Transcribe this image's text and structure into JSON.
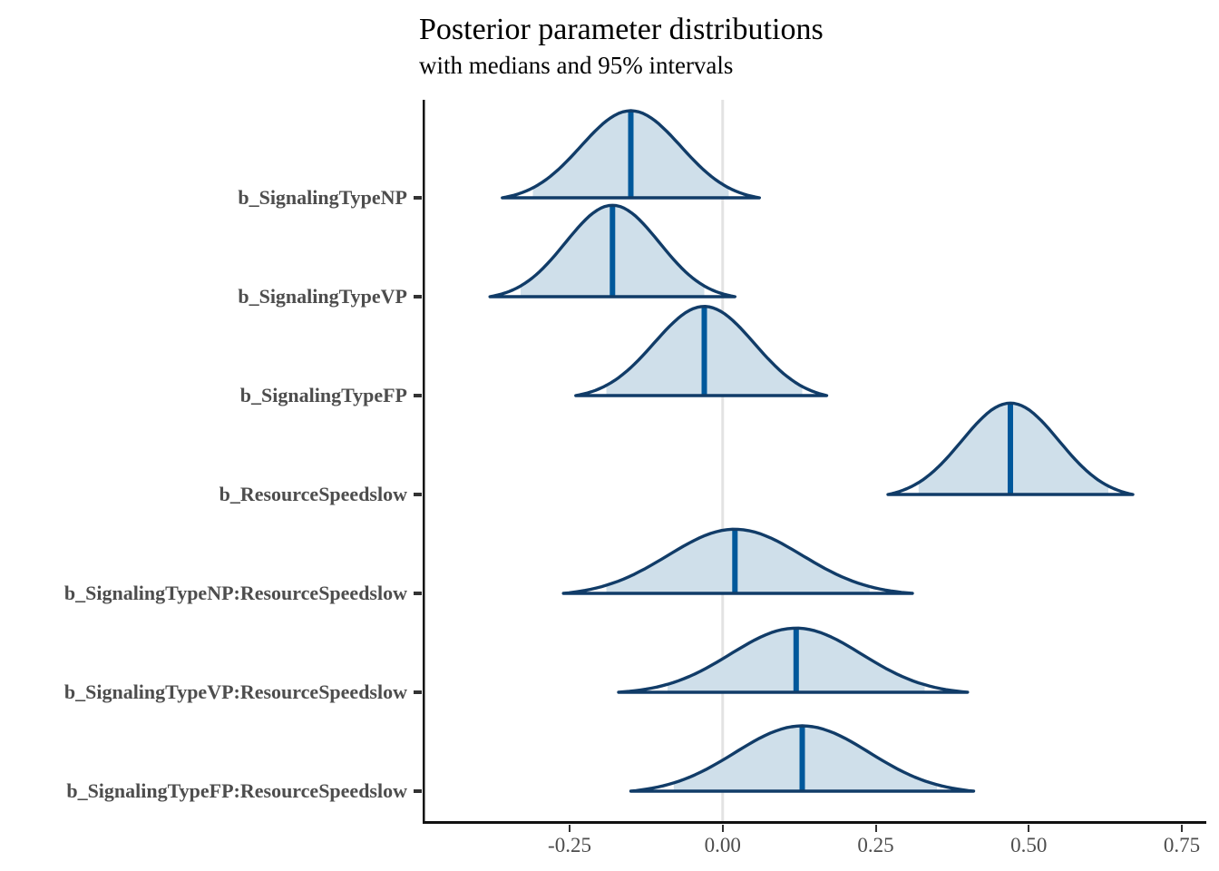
{
  "chart_data": {
    "type": "area",
    "title": "Posterior parameter distributions",
    "subtitle": "with medians and 95% intervals",
    "x_axis": {
      "range": [
        -0.49,
        0.79
      ],
      "ticks": [
        -0.25,
        0,
        0.25,
        0.5,
        0.75
      ],
      "tick_labels": [
        "-0.25",
        "0.00",
        "0.25",
        "0.50",
        "0.75"
      ],
      "zero_reference_line": 0
    },
    "legend_position": "none",
    "grid": "off",
    "parameters": [
      {
        "label": "b_SignalingTypeNP",
        "median": -0.15,
        "ci95": [
          -0.31,
          0.01
        ],
        "range": [
          -0.36,
          0.06
        ]
      },
      {
        "label": "b_SignalingTypeVP",
        "median": -0.18,
        "ci95": [
          -0.33,
          -0.03
        ],
        "range": [
          -0.38,
          0.02
        ]
      },
      {
        "label": "b_SignalingTypeFP",
        "median": -0.03,
        "ci95": [
          -0.19,
          0.13
        ],
        "range": [
          -0.24,
          0.17
        ]
      },
      {
        "label": "b_ResourceSpeedslow",
        "median": 0.47,
        "ci95": [
          0.32,
          0.63
        ],
        "range": [
          0.27,
          0.67
        ]
      },
      {
        "label": "b_SignalingTypeNP:ResourceSpeedslow",
        "median": 0.02,
        "ci95": [
          -0.19,
          0.24
        ],
        "range": [
          -0.26,
          0.31
        ]
      },
      {
        "label": "b_SignalingTypeVP:ResourceSpeedslow",
        "median": 0.12,
        "ci95": [
          -0.09,
          0.33
        ],
        "range": [
          -0.17,
          0.4
        ]
      },
      {
        "label": "b_SignalingTypeFP:ResourceSpeedslow",
        "median": 0.13,
        "ci95": [
          -0.08,
          0.35
        ],
        "range": [
          -0.15,
          0.41
        ]
      }
    ],
    "colors": {
      "outline": "#113c68",
      "median_line": "#00589b",
      "interval_fill": "#cfdfea",
      "zero_line": "#e3e3e3",
      "axis_line": "#111111",
      "tick_mark": "#333333",
      "axis_text": "#4d4d4d",
      "title_text": "#000000"
    }
  }
}
